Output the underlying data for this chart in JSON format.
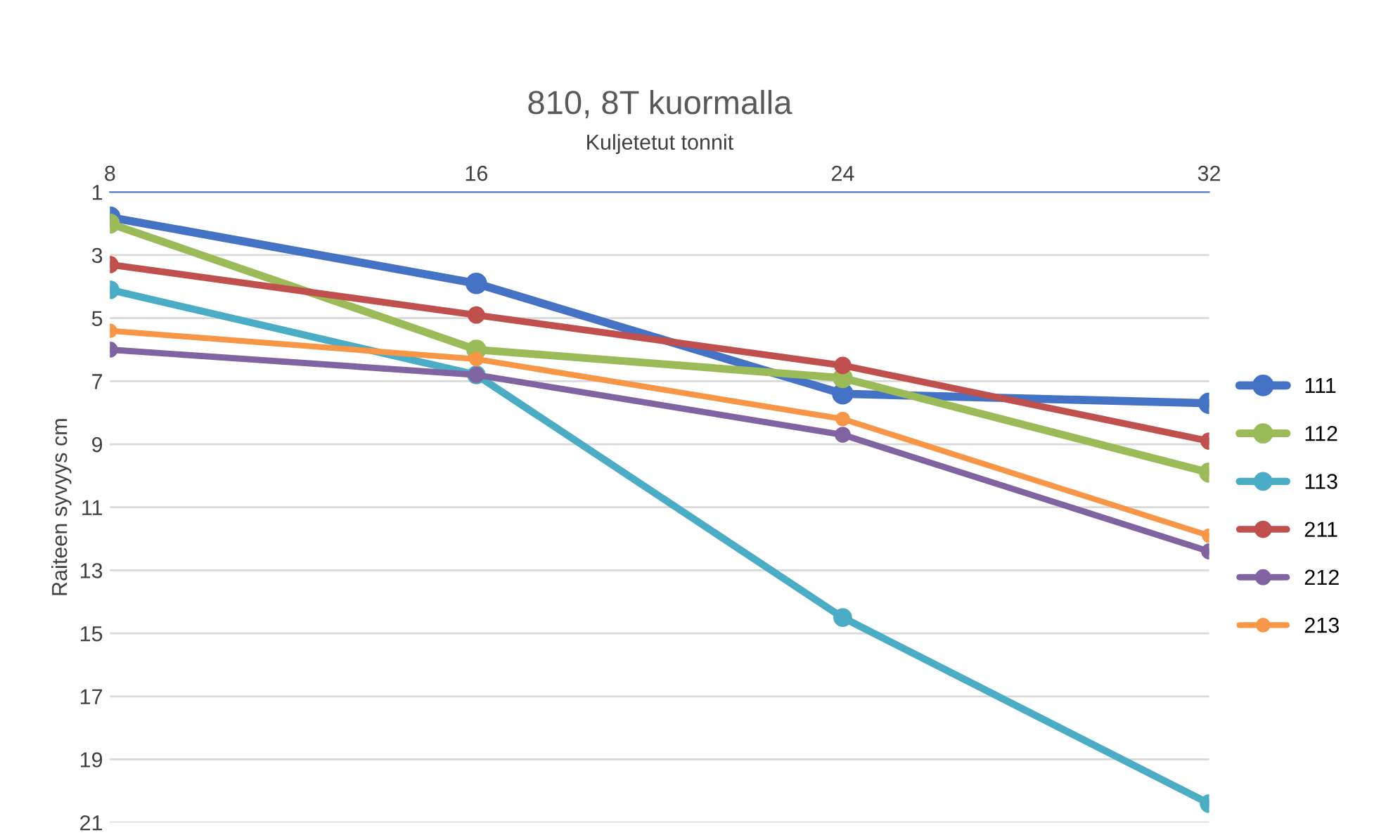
{
  "chart_data": {
    "type": "line",
    "title": "810, 8T kuormalla",
    "xlabel": "Kuljetetut tonnit",
    "ylabel": "Raiteen syvyys cm",
    "x": [
      8,
      16,
      24,
      32
    ],
    "xlim": [
      8,
      32
    ],
    "xticks": [
      8,
      16,
      24,
      32
    ],
    "ylim": [
      21,
      1
    ],
    "yticks": [
      1,
      3,
      5,
      7,
      9,
      11,
      13,
      15,
      17,
      19,
      21
    ],
    "grid": "y",
    "legend": "right",
    "marker": "circle",
    "line_style": "solid",
    "series": [
      {
        "name": "111",
        "color": "#4472c4",
        "values": [
          1.8,
          3.9,
          7.4,
          7.7
        ]
      },
      {
        "name": "112",
        "color": "#9bbb59",
        "values": [
          2.0,
          6.0,
          6.9,
          9.9
        ]
      },
      {
        "name": "113",
        "color": "#4bacc6",
        "values": [
          4.1,
          6.8,
          14.5,
          20.4
        ]
      },
      {
        "name": "211",
        "color": "#c0504d",
        "values": [
          3.3,
          4.9,
          6.5,
          8.9
        ]
      },
      {
        "name": "212",
        "color": "#8064a2",
        "values": [
          6.0,
          6.8,
          8.7,
          12.4
        ]
      },
      {
        "name": "213",
        "color": "#f79646",
        "values": [
          5.4,
          6.3,
          8.2,
          11.9
        ]
      }
    ]
  }
}
